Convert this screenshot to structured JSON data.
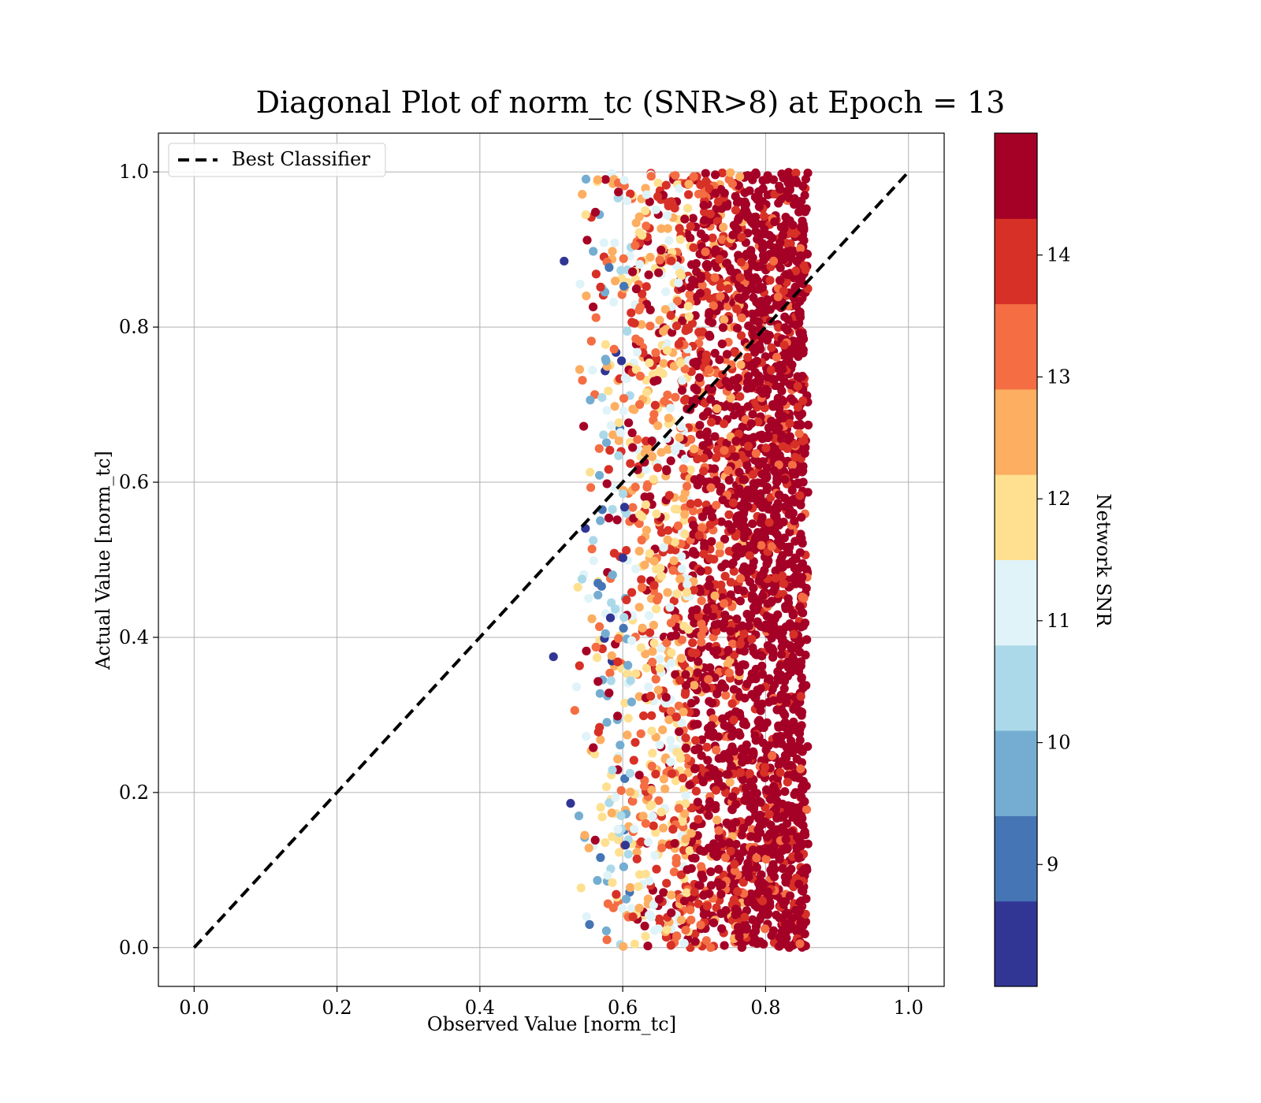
{
  "chart_data": {
    "type": "scatter",
    "title": "Diagonal Plot of norm_tc (SNR>8) at Epoch = 13",
    "xlabel": "Observed Value [norm_tc]",
    "ylabel": "Actual Value [norm_tc]",
    "xlim": [
      -0.05,
      1.05
    ],
    "ylim": [
      -0.05,
      1.05
    ],
    "xticks": [
      "0.0",
      "0.2",
      "0.4",
      "0.6",
      "0.8",
      "1.0"
    ],
    "yticks": [
      "0.0",
      "0.2",
      "0.4",
      "0.6",
      "0.8",
      "1.0"
    ],
    "grid": true,
    "legend": {
      "placement": "upper-left",
      "entries": [
        "Best Classifier"
      ]
    },
    "reference_line": {
      "name": "Best Classifier",
      "style": "dashed",
      "color": "#000000",
      "x": [
        0,
        1
      ],
      "y": [
        0,
        1
      ]
    },
    "points_summary": {
      "x_range": [
        0.53,
        0.86
      ],
      "y_range": [
        0.0,
        1.0
      ],
      "note_outliers": [
        [
          0.503,
          0.375
        ],
        [
          0.518,
          0.885
        ],
        [
          0.527,
          0.186
        ]
      ]
    },
    "colorbar": {
      "label": "Network SNR",
      "ticks": [
        "9",
        "10",
        "11",
        "12",
        "13",
        "14"
      ],
      "range": [
        8,
        15
      ],
      "colors": [
        "#313695",
        "#4575b4",
        "#74add1",
        "#abd9e9",
        "#e0f3f8",
        "#fee090",
        "#fdae61",
        "#f46d43",
        "#d73027",
        "#a50026"
      ]
    }
  }
}
